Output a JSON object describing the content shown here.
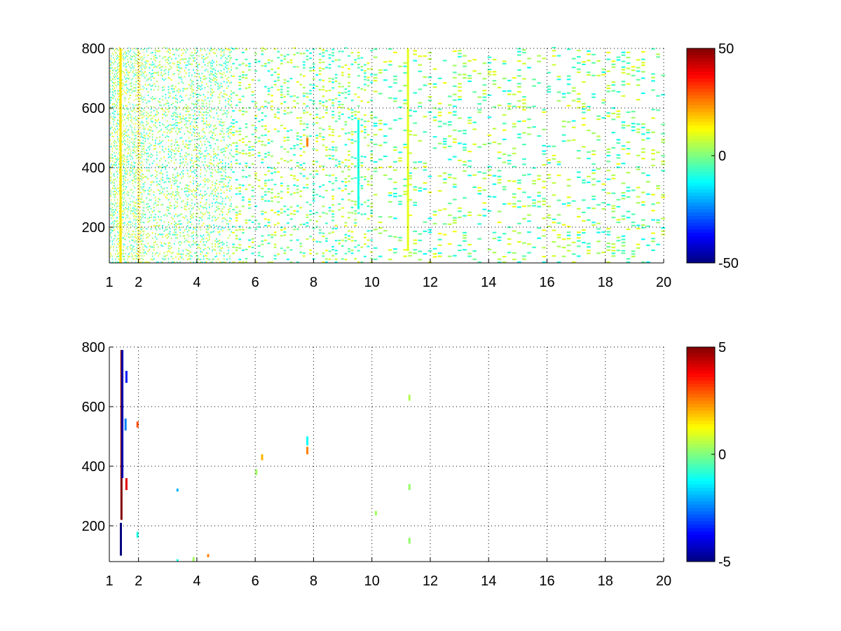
{
  "chart_data": [
    {
      "type": "heatmap",
      "title": "",
      "xlabel": "",
      "ylabel": "",
      "xlim": [
        1,
        20
      ],
      "ylim": [
        80,
        800
      ],
      "x_ticks": [
        "1",
        "2",
        "4",
        "6",
        "8",
        "10",
        "12",
        "14",
        "16",
        "18",
        "20"
      ],
      "y_ticks": [
        "200",
        "400",
        "600",
        "800"
      ],
      "grid": true,
      "grid_style": "dotted",
      "colormap": "jet",
      "colorbar": {
        "min": -50,
        "max": 50,
        "ticks": [
          "50",
          "0",
          "-50"
        ]
      },
      "background": "#ffffff",
      "description": "sparse speckle of values near 0 across the whole area; denser at low x (1-5), with strong streaks around x=1.3 and x=2.0",
      "notable_points": [
        {
          "x": 1.35,
          "y_range": [
            80,
            800
          ],
          "value": 15
        },
        {
          "x": 7.75,
          "y_range": [
            470,
            500
          ],
          "value": 25
        },
        {
          "x": 9.5,
          "y_range": [
            260,
            560
          ],
          "value": -10
        },
        {
          "x": 11.2,
          "y_range": [
            120,
            800
          ],
          "value": 10
        }
      ]
    },
    {
      "type": "heatmap",
      "title": "",
      "xlabel": "",
      "ylabel": "",
      "xlim": [
        1,
        20
      ],
      "ylim": [
        80,
        800
      ],
      "x_ticks": [
        "1",
        "2",
        "4",
        "6",
        "8",
        "10",
        "12",
        "14",
        "16",
        "18",
        "20"
      ],
      "y_ticks": [
        "200",
        "400",
        "600",
        "800"
      ],
      "grid": true,
      "grid_style": "dotted",
      "colormap": "jet",
      "colorbar": {
        "min": -5,
        "max": 5,
        "ticks": [
          "5",
          "0",
          "-5"
        ]
      },
      "background": "#ffffff",
      "points": [
        {
          "x": 1.38,
          "y0": 220,
          "y1": 790,
          "value": 5
        },
        {
          "x": 1.36,
          "y0": 100,
          "y1": 210,
          "value": -5
        },
        {
          "x": 1.41,
          "y0": 360,
          "y1": 790,
          "value": -4.5
        },
        {
          "x": 1.55,
          "y0": 680,
          "y1": 720,
          "value": -3.5
        },
        {
          "x": 1.55,
          "y0": 320,
          "y1": 360,
          "value": 4
        },
        {
          "x": 1.52,
          "y0": 520,
          "y1": 560,
          "value": -2.5
        },
        {
          "x": 1.93,
          "y0": 530,
          "y1": 550,
          "value": 3
        },
        {
          "x": 1.93,
          "y0": 160,
          "y1": 180,
          "value": -1
        },
        {
          "x": 3.3,
          "y0": 315,
          "y1": 325,
          "value": -2
        },
        {
          "x": 3.3,
          "y0": 80,
          "y1": 88,
          "value": -1
        },
        {
          "x": 3.85,
          "y0": 80,
          "y1": 95,
          "value": 0.3
        },
        {
          "x": 4.35,
          "y0": 95,
          "y1": 105,
          "value": 2.5
        },
        {
          "x": 6.0,
          "y0": 370,
          "y1": 390,
          "value": 0.3
        },
        {
          "x": 6.2,
          "y0": 420,
          "y1": 440,
          "value": 2
        },
        {
          "x": 7.75,
          "y0": 470,
          "y1": 500,
          "value": -1.2
        },
        {
          "x": 7.75,
          "y0": 440,
          "y1": 465,
          "value": 2.5
        },
        {
          "x": 10.1,
          "y0": 235,
          "y1": 250,
          "value": 0.3
        },
        {
          "x": 11.25,
          "y0": 620,
          "y1": 640,
          "value": 0.5
        },
        {
          "x": 11.25,
          "y0": 320,
          "y1": 340,
          "value": 0.2
        },
        {
          "x": 11.25,
          "y0": 140,
          "y1": 160,
          "value": 0.2
        }
      ]
    }
  ]
}
